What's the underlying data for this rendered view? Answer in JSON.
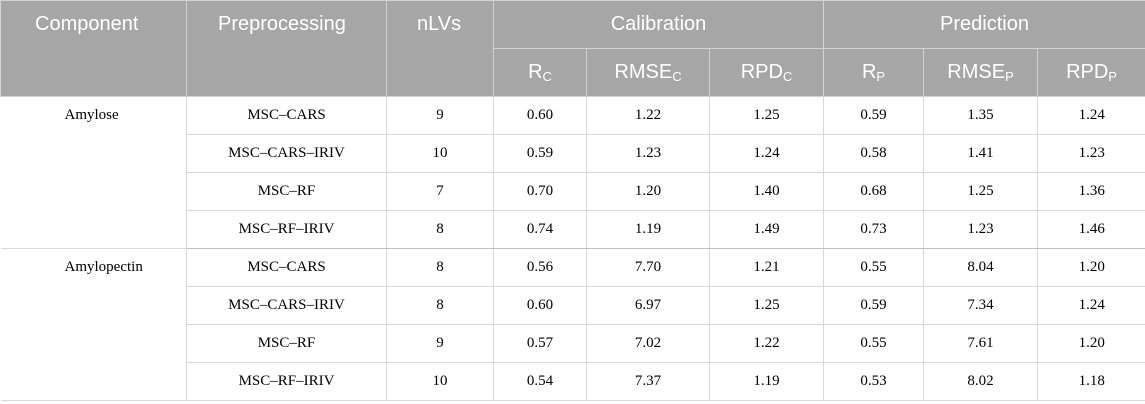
{
  "header": {
    "component": "Component",
    "preprocessing": "Preprocessing",
    "nlvs": "nLVs",
    "calibration": "Calibration",
    "prediction": "Prediction",
    "sub": [
      {
        "base": "R",
        "sub": "C"
      },
      {
        "base": "RMSE",
        "sub": "C"
      },
      {
        "base": "RPD",
        "sub": "C"
      },
      {
        "base": "R",
        "sub": "P"
      },
      {
        "base": "RMSE",
        "sub": "P"
      },
      {
        "base": "RPD",
        "sub": "P"
      }
    ]
  },
  "groups": [
    {
      "component": "Amylose",
      "rows": [
        [
          "MSC–CARS",
          "9",
          "0.60",
          "1.22",
          "1.25",
          "0.59",
          "1.35",
          "1.24"
        ],
        [
          "MSC–CARS–IRIV",
          "10",
          "0.59",
          "1.23",
          "1.24",
          "0.58",
          "1.41",
          "1.23"
        ],
        [
          "MSC–RF",
          "7",
          "0.70",
          "1.20",
          "1.40",
          "0.68",
          "1.25",
          "1.36"
        ],
        [
          "MSC–RF–IRIV",
          "8",
          "0.74",
          "1.19",
          "1.49",
          "0.73",
          "1.23",
          "1.46"
        ]
      ]
    },
    {
      "component": "Amylopectin",
      "rows": [
        [
          "MSC–CARS",
          "8",
          "0.56",
          "7.70",
          "1.21",
          "0.55",
          "8.04",
          "1.20"
        ],
        [
          "MSC–CARS–IRIV",
          "8",
          "0.60",
          "6.97",
          "1.25",
          "0.59",
          "7.34",
          "1.24"
        ],
        [
          "MSC–RF",
          "9",
          "0.57",
          "7.02",
          "1.22",
          "0.55",
          "7.61",
          "1.20"
        ],
        [
          "MSC–RF–IRIV",
          "10",
          "0.54",
          "7.37",
          "1.19",
          "0.53",
          "8.02",
          "1.18"
        ]
      ]
    }
  ]
}
